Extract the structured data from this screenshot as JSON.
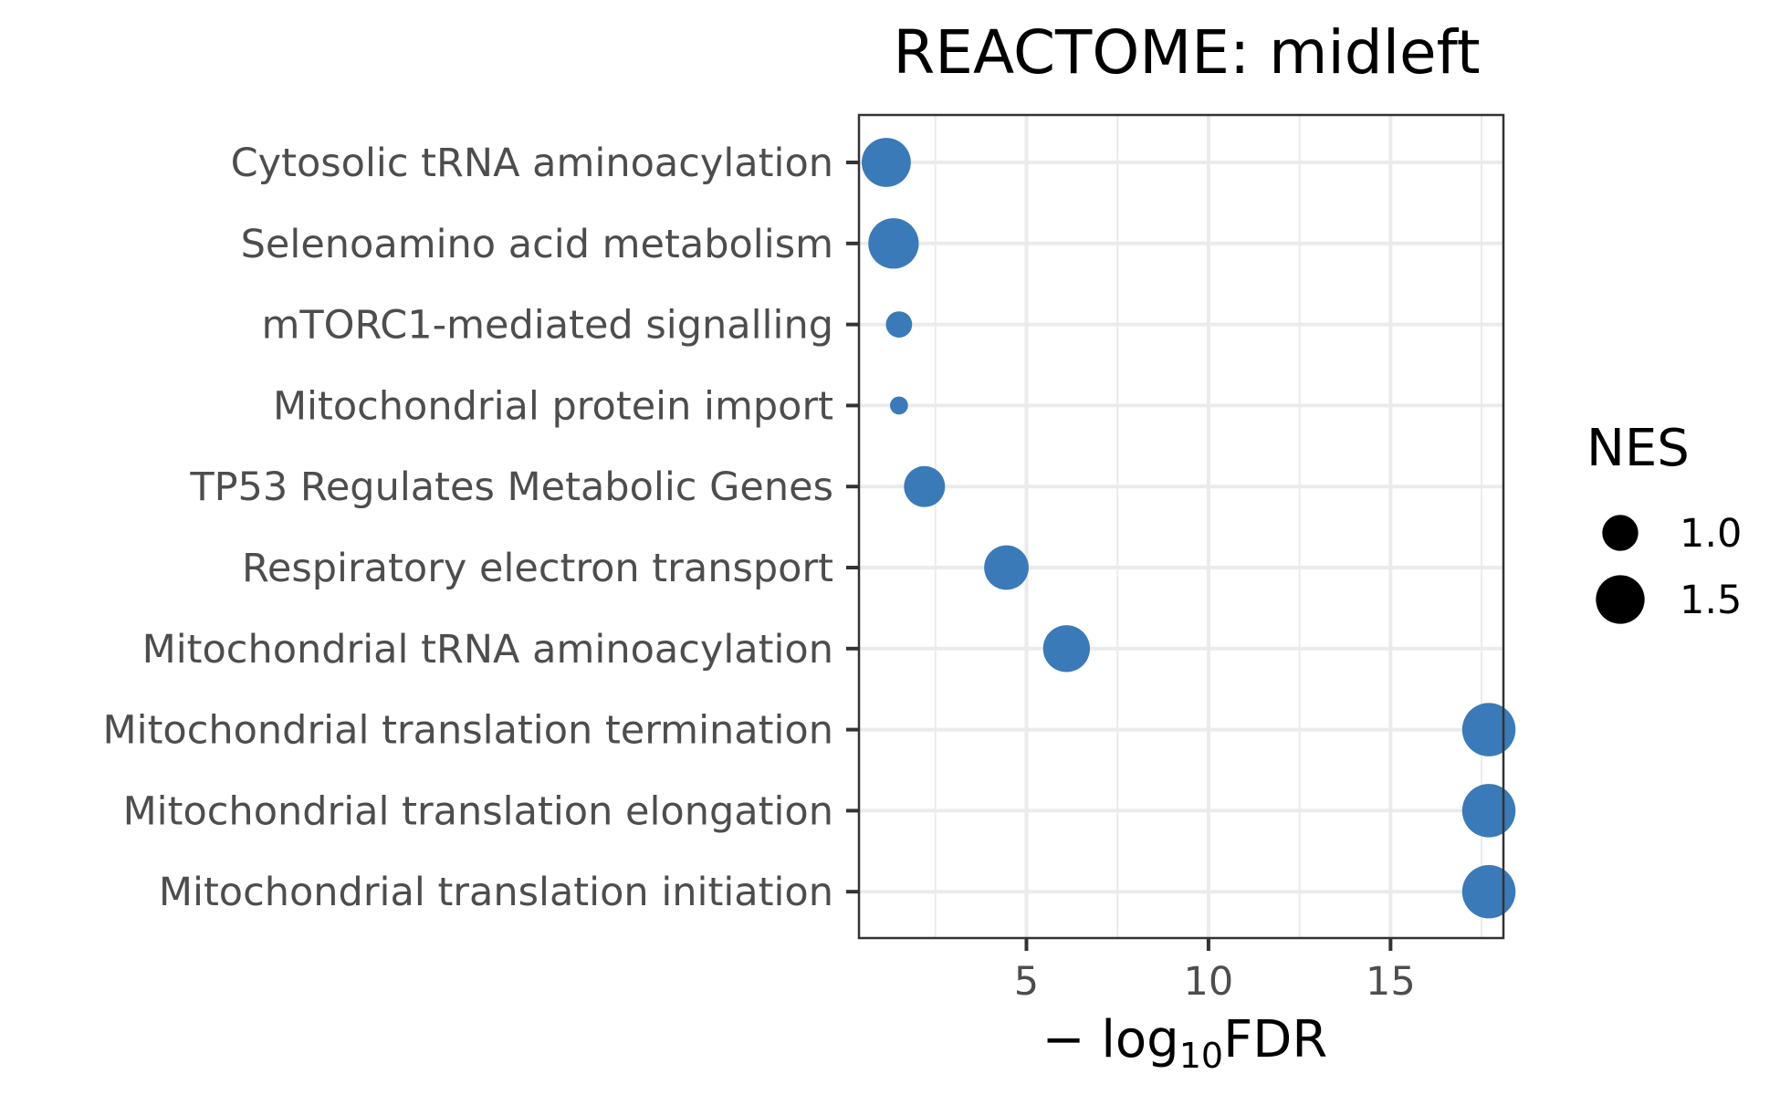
{
  "chart_data": {
    "type": "scatter",
    "title": "REACTOME: midleft",
    "xlabel": "− log10FDR",
    "xlabel_parts": {
      "prefix": "− log",
      "sub": "10",
      "suffix": "FDR"
    },
    "ylabel": "",
    "xlim": [
      0.4,
      18.1
    ],
    "x_ticks": [
      5,
      10,
      15
    ],
    "grid": true,
    "legend": {
      "title": "NES",
      "position": "right",
      "entries": [
        {
          "label": "1.0",
          "nes": 1.0
        },
        {
          "label": "1.5",
          "nes": 1.5
        }
      ]
    },
    "point_color": "#3a7ab8",
    "categories": [
      "Cytosolic tRNA aminoacylation",
      "Selenoamino acid metabolism",
      "mTORC1-mediated signalling",
      "Mitochondrial protein import",
      "TP53 Regulates Metabolic Genes",
      "Respiratory electron transport",
      "Mitochondrial tRNA aminoacylation",
      "Mitochondrial translation termination",
      "Mitochondrial translation elongation",
      "Mitochondrial translation initiation"
    ],
    "points": [
      {
        "pathway": "Cytosolic tRNA aminoacylation",
        "neg_log10_fdr": 1.15,
        "nes": 1.52
      },
      {
        "pathway": "Selenoamino acid metabolism",
        "neg_log10_fdr": 1.35,
        "nes": 1.58
      },
      {
        "pathway": "mTORC1-mediated signalling",
        "neg_log10_fdr": 1.5,
        "nes": 0.72
      },
      {
        "pathway": "Mitochondrial protein import",
        "neg_log10_fdr": 1.5,
        "nes": 0.55
      },
      {
        "pathway": "TP53 Regulates Metabolic Genes",
        "neg_log10_fdr": 2.2,
        "nes": 1.18
      },
      {
        "pathway": "Respiratory electron transport",
        "neg_log10_fdr": 4.45,
        "nes": 1.32
      },
      {
        "pathway": "Mitochondrial tRNA aminoacylation",
        "neg_log10_fdr": 6.1,
        "nes": 1.42
      },
      {
        "pathway": "Mitochondrial translation termination",
        "neg_log10_fdr": 17.7,
        "nes": 1.72
      },
      {
        "pathway": "Mitochondrial translation elongation",
        "neg_log10_fdr": 17.7,
        "nes": 1.72
      },
      {
        "pathway": "Mitochondrial translation initiation",
        "neg_log10_fdr": 17.7,
        "nes": 1.72
      }
    ]
  }
}
